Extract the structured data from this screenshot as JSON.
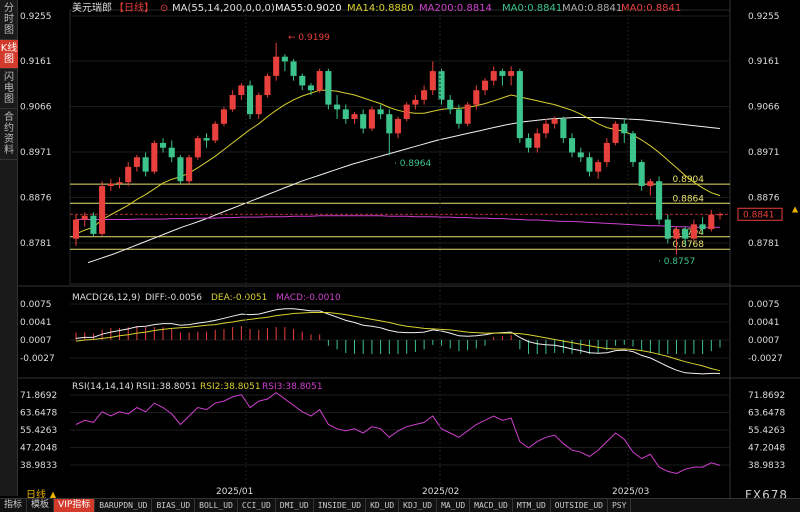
{
  "sidebar": {
    "items": [
      {
        "label": "分时图",
        "active": false
      },
      {
        "label": "K线图",
        "active": true
      },
      {
        "label": "闪电图",
        "active": false
      },
      {
        "label": "合约资料",
        "active": false
      }
    ]
  },
  "header": {
    "symbol": "美元瑞郎",
    "period_tag": "【日线】",
    "ma_params": "MA(55,14,200,0,0,0)",
    "ma55": "MA55:0.9020",
    "ma14": "MA14:0.8880",
    "ma200": "MA200:0.8814",
    "ma0a": "MA0:0.8841",
    "ma0b": "MA0:0.8841",
    "ma0c": "MA0:0.8841"
  },
  "price_axis": {
    "left": [
      "0.9255",
      "0.9161",
      "0.9066",
      "0.8971",
      "0.8876",
      "0.8781"
    ],
    "right": [
      "0.9255",
      "0.9161",
      "0.9066",
      "0.8971",
      "0.8876",
      "0.8781"
    ],
    "current": "0.8841"
  },
  "levels": [
    {
      "label": "0.8904",
      "value": 0.8904
    },
    {
      "label": "0.8864",
      "value": 0.8864
    },
    {
      "label": "0.8794",
      "value": 0.8794
    },
    {
      "label": "0.8768",
      "value": 0.8768
    }
  ],
  "annotations": {
    "high": "0.9199",
    "mid_low": "0.8964",
    "low": "0.8757"
  },
  "macd": {
    "title": "MACD(26,12,9)",
    "diff": "DIFF:-0.0056",
    "dea": "DEA:-0.0051",
    "macd": "MACD:-0.0010",
    "axis_left": [
      "0.0075",
      "0.0041",
      "0.0007",
      "-0.0027"
    ],
    "axis_right": [
      "0.0075",
      "0.0041",
      "0.0007",
      "-0.0027"
    ]
  },
  "rsi": {
    "title": "RSI(14,14,14)",
    "rsi1": "RSI1:38.8051",
    "rsi2": "RSI2:38.8051",
    "rsi3": "RSI3:38.8051",
    "axis_left": [
      "71.8692",
      "63.6478",
      "55.4263",
      "47.2048",
      "38.9833"
    ],
    "axis_right": [
      "71.8692",
      "63.6478",
      "55.4263",
      "47.2048",
      "38.9833"
    ]
  },
  "x_axis": [
    "2025/01",
    "2025/02",
    "2025/03"
  ],
  "period_button": "日线",
  "brand": "FX678",
  "bottom_tabs": [
    "指标",
    "模板",
    "VIP指标",
    "BARUPDN_UD",
    "BIAS_UD",
    "BOLL_UD",
    "CCI_UD",
    "DMI_UD",
    "INSIDE_UD",
    "KD_UD",
    "KDJ_UD",
    "MA_UD",
    "MACD_UD",
    "MTM_UD",
    "OUTSIDE_UD",
    "PSY"
  ],
  "colors": {
    "up": "#e8403c",
    "down": "#3cc48c",
    "ma55": "#f0f0f0",
    "ma14": "#d8d030",
    "ma200": "#d040d0",
    "level": "#e8e070"
  },
  "chart_data": {
    "type": "candlestick",
    "candles": [
      [
        0.879,
        0.883,
        0.8775,
        0.884
      ],
      [
        0.883,
        0.8838,
        0.8815,
        0.8845
      ],
      [
        0.8838,
        0.88,
        0.8795,
        0.8845
      ],
      [
        0.88,
        0.89,
        0.8795,
        0.891
      ],
      [
        0.89,
        0.8905,
        0.889,
        0.8915
      ],
      [
        0.8905,
        0.8908,
        0.8895,
        0.8918
      ],
      [
        0.8908,
        0.894,
        0.89,
        0.895
      ],
      [
        0.894,
        0.896,
        0.893,
        0.8965
      ],
      [
        0.896,
        0.893,
        0.892,
        0.897
      ],
      [
        0.893,
        0.899,
        0.8925,
        0.8995
      ],
      [
        0.899,
        0.898,
        0.897,
        0.9
      ],
      [
        0.898,
        0.896,
        0.895,
        0.8995
      ],
      [
        0.896,
        0.891,
        0.8905,
        0.8965
      ],
      [
        0.891,
        0.896,
        0.8905,
        0.8965
      ],
      [
        0.896,
        0.9,
        0.8955,
        0.9005
      ],
      [
        0.9,
        0.8995,
        0.898,
        0.901
      ],
      [
        0.8995,
        0.903,
        0.899,
        0.9035
      ],
      [
        0.903,
        0.906,
        0.9025,
        0.9065
      ],
      [
        0.906,
        0.909,
        0.9055,
        0.91
      ],
      [
        0.909,
        0.911,
        0.908,
        0.9115
      ],
      [
        0.911,
        0.905,
        0.904,
        0.912
      ],
      [
        0.905,
        0.909,
        0.904,
        0.9095
      ],
      [
        0.909,
        0.913,
        0.9085,
        0.9135
      ],
      [
        0.913,
        0.917,
        0.912,
        0.9199
      ],
      [
        0.917,
        0.916,
        0.914,
        0.9175
      ],
      [
        0.916,
        0.913,
        0.912,
        0.9165
      ],
      [
        0.913,
        0.911,
        0.91,
        0.9135
      ],
      [
        0.911,
        0.91,
        0.909,
        0.9115
      ],
      [
        0.91,
        0.914,
        0.9095,
        0.9145
      ],
      [
        0.914,
        0.907,
        0.906,
        0.9145
      ],
      [
        0.907,
        0.906,
        0.904,
        0.909
      ],
      [
        0.906,
        0.904,
        0.903,
        0.907
      ],
      [
        0.904,
        0.905,
        0.903,
        0.9055
      ],
      [
        0.905,
        0.902,
        0.901,
        0.906
      ],
      [
        0.902,
        0.906,
        0.9015,
        0.9065
      ],
      [
        0.906,
        0.905,
        0.904,
        0.907
      ],
      [
        0.905,
        0.901,
        0.8964,
        0.906
      ],
      [
        0.901,
        0.904,
        0.9,
        0.9045
      ],
      [
        0.904,
        0.907,
        0.9035,
        0.9075
      ],
      [
        0.907,
        0.908,
        0.906,
        0.909
      ],
      [
        0.908,
        0.91,
        0.907,
        0.911
      ],
      [
        0.91,
        0.914,
        0.909,
        0.916
      ],
      [
        0.914,
        0.908,
        0.907,
        0.9145
      ],
      [
        0.908,
        0.906,
        0.905,
        0.909
      ],
      [
        0.906,
        0.903,
        0.902,
        0.907
      ],
      [
        0.903,
        0.907,
        0.9025,
        0.9075
      ],
      [
        0.907,
        0.91,
        0.906,
        0.911
      ],
      [
        0.91,
        0.912,
        0.909,
        0.9125
      ],
      [
        0.912,
        0.914,
        0.911,
        0.915
      ],
      [
        0.914,
        0.913,
        0.911,
        0.9145
      ],
      [
        0.913,
        0.914,
        0.911,
        0.915
      ],
      [
        0.914,
        0.9,
        0.899,
        0.9145
      ],
      [
        0.9,
        0.898,
        0.897,
        0.901
      ],
      [
        0.898,
        0.901,
        0.897,
        0.902
      ],
      [
        0.901,
        0.903,
        0.9,
        0.904
      ],
      [
        0.903,
        0.904,
        0.902,
        0.9045
      ],
      [
        0.904,
        0.9,
        0.899,
        0.9045
      ],
      [
        0.9,
        0.897,
        0.896,
        0.901
      ],
      [
        0.897,
        0.896,
        0.895,
        0.898
      ],
      [
        0.896,
        0.893,
        0.892,
        0.897
      ],
      [
        0.893,
        0.895,
        0.8915,
        0.8955
      ],
      [
        0.895,
        0.899,
        0.894,
        0.9
      ],
      [
        0.899,
        0.903,
        0.8985,
        0.9035
      ],
      [
        0.903,
        0.901,
        0.899,
        0.904
      ],
      [
        0.901,
        0.895,
        0.894,
        0.9015
      ],
      [
        0.895,
        0.89,
        0.889,
        0.8955
      ],
      [
        0.89,
        0.891,
        0.888,
        0.8915
      ],
      [
        0.891,
        0.883,
        0.882,
        0.892
      ],
      [
        0.883,
        0.879,
        0.878,
        0.884
      ],
      [
        0.879,
        0.881,
        0.8757,
        0.8815
      ],
      [
        0.881,
        0.879,
        0.8775,
        0.8815
      ],
      [
        0.879,
        0.882,
        0.8785,
        0.883
      ],
      [
        0.882,
        0.881,
        0.88,
        0.8835
      ],
      [
        0.881,
        0.884,
        0.8805,
        0.885
      ],
      [
        0.884,
        0.8841,
        0.883,
        0.8845
      ]
    ],
    "ma14": [
      0.88,
      0.8808,
      0.8814,
      0.883,
      0.884,
      0.885,
      0.886,
      0.8872,
      0.8882,
      0.8894,
      0.8906,
      0.8914,
      0.8919,
      0.8927,
      0.8938,
      0.895,
      0.8962,
      0.8976,
      0.899,
      0.9004,
      0.9018,
      0.903,
      0.9045,
      0.9058,
      0.907,
      0.908,
      0.9088,
      0.9094,
      0.91,
      0.91,
      0.9098,
      0.9094,
      0.909,
      0.9084,
      0.9078,
      0.9072,
      0.9064,
      0.9058,
      0.9054,
      0.9052,
      0.9052,
      0.9056,
      0.906,
      0.9062,
      0.9062,
      0.9064,
      0.9068,
      0.9072,
      0.9078,
      0.9084,
      0.909,
      0.9086,
      0.9082,
      0.9078,
      0.9074,
      0.907,
      0.9064,
      0.9058,
      0.905,
      0.904,
      0.903,
      0.9022,
      0.9018,
      0.9014,
      0.9006,
      0.8996,
      0.8984,
      0.897,
      0.8954,
      0.8938,
      0.8922,
      0.8908,
      0.8896,
      0.8886,
      0.888
    ],
    "ma55": [
      0.874,
      0.8746,
      0.8752,
      0.8758,
      0.8765,
      0.8772,
      0.8779,
      0.8786,
      0.8793,
      0.88,
      0.8807,
      0.8814,
      0.882,
      0.8826,
      0.8833,
      0.884,
      0.8847,
      0.8854,
      0.8861,
      0.8868,
      0.8875,
      0.8882,
      0.8889,
      0.8896,
      0.8903,
      0.891,
      0.8916,
      0.8922,
      0.8928,
      0.8934,
      0.894,
      0.8946,
      0.8951,
      0.8956,
      0.8961,
      0.8966,
      0.8971,
      0.8976,
      0.8981,
      0.8986,
      0.8991,
      0.8996,
      0.9,
      0.9004,
      0.9008,
      0.9012,
      0.9016,
      0.902,
      0.9024,
      0.9028,
      0.9031,
      0.9034,
      0.9036,
      0.9038,
      0.904,
      0.9041,
      0.9042,
      0.9043,
      0.9043,
      0.9043,
      0.9043,
      0.9042,
      0.9041,
      0.904,
      0.9039,
      0.9038,
      0.9036,
      0.9034,
      0.9032,
      0.903,
      0.9028,
      0.9026,
      0.9024,
      0.9022,
      0.902
    ],
    "ma200": [
      0.883,
      0.883,
      0.883,
      0.883,
      0.883,
      0.883,
      0.883,
      0.8831,
      0.8831,
      0.8831,
      0.8831,
      0.8832,
      0.8832,
      0.8832,
      0.8833,
      0.8833,
      0.8833,
      0.8834,
      0.8834,
      0.8835,
      0.8835,
      0.8835,
      0.8836,
      0.8836,
      0.8836,
      0.8837,
      0.8837,
      0.8837,
      0.8838,
      0.8838,
      0.8838,
      0.8838,
      0.8838,
      0.8838,
      0.8838,
      0.8838,
      0.8837,
      0.8837,
      0.8837,
      0.8836,
      0.8836,
      0.8836,
      0.8835,
      0.8835,
      0.8834,
      0.8834,
      0.8833,
      0.8833,
      0.8832,
      0.8832,
      0.8831,
      0.883,
      0.8829,
      0.8829,
      0.8828,
      0.8827,
      0.8826,
      0.8826,
      0.8825,
      0.8824,
      0.8823,
      0.8822,
      0.8821,
      0.882,
      0.8819,
      0.8818,
      0.8817,
      0.8817,
      0.8816,
      0.8815,
      0.8815,
      0.8814,
      0.8814,
      0.8814,
      0.8814
    ],
    "macd_diff": [
      0.001,
      0.0012,
      0.0012,
      0.0018,
      0.0022,
      0.0025,
      0.0028,
      0.0032,
      0.0033,
      0.0036,
      0.0038,
      0.0038,
      0.0035,
      0.0036,
      0.0039,
      0.0041,
      0.0044,
      0.0048,
      0.0052,
      0.0056,
      0.0055,
      0.0056,
      0.006,
      0.0064,
      0.0066,
      0.0066,
      0.0064,
      0.0062,
      0.0062,
      0.0056,
      0.005,
      0.0044,
      0.004,
      0.0035,
      0.0033,
      0.003,
      0.0025,
      0.0022,
      0.0021,
      0.0021,
      0.0022,
      0.0026,
      0.0024,
      0.002,
      0.0015,
      0.0014,
      0.0015,
      0.0017,
      0.002,
      0.0021,
      0.0022,
      0.0012,
      0.0004,
      0.0,
      -0.0002,
      -0.0003,
      -0.0006,
      -0.001,
      -0.0013,
      -0.0017,
      -0.0018,
      -0.0017,
      -0.0013,
      -0.0012,
      -0.0015,
      -0.0022,
      -0.0027,
      -0.0035,
      -0.0043,
      -0.005,
      -0.0055,
      -0.0056,
      -0.0057,
      -0.0056,
      -0.0056
    ],
    "macd_dea": [
      0.0005,
      0.0007,
      0.0008,
      0.001,
      0.0012,
      0.0015,
      0.0017,
      0.002,
      0.0022,
      0.0025,
      0.0027,
      0.0029,
      0.003,
      0.0031,
      0.0033,
      0.0035,
      0.0036,
      0.0039,
      0.0041,
      0.0044,
      0.0046,
      0.0048,
      0.005,
      0.0053,
      0.0055,
      0.0057,
      0.0058,
      0.0059,
      0.0059,
      0.0059,
      0.0057,
      0.0055,
      0.0052,
      0.0049,
      0.0046,
      0.0043,
      0.004,
      0.0036,
      0.0033,
      0.0031,
      0.0029,
      0.0028,
      0.0027,
      0.0026,
      0.0024,
      0.0022,
      0.0021,
      0.002,
      0.002,
      0.002,
      0.002,
      0.0019,
      0.0017,
      0.0014,
      0.0011,
      0.0008,
      0.0005,
      0.0002,
      -0.0001,
      -0.0004,
      -0.0007,
      -0.0009,
      -0.001,
      -0.001,
      -0.0011,
      -0.0013,
      -0.0016,
      -0.002,
      -0.0024,
      -0.0029,
      -0.0034,
      -0.0038,
      -0.0042,
      -0.0047,
      -0.0051
    ],
    "rsi": [
      58,
      60,
      59,
      64,
      62,
      64,
      63,
      66,
      64,
      68,
      66,
      63,
      58,
      62,
      66,
      65,
      68,
      69,
      71,
      72,
      66,
      69,
      70,
      73,
      70,
      67,
      64,
      62,
      65,
      58,
      56,
      55,
      56,
      54,
      57,
      56,
      52,
      55,
      57,
      58,
      59,
      62,
      56,
      54,
      52,
      55,
      58,
      60,
      62,
      60,
      61,
      50,
      47,
      50,
      52,
      53,
      49,
      46,
      45,
      43,
      46,
      50,
      54,
      51,
      45,
      42,
      44,
      38,
      36,
      35,
      37,
      38,
      38,
      40,
      38.8
    ],
    "x_labels": [
      "2025/01",
      "2025/02",
      "2025/03"
    ]
  }
}
